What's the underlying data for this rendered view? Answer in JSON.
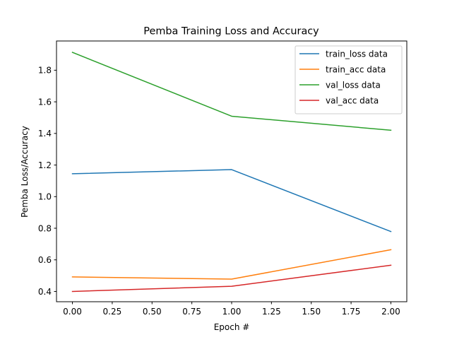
{
  "chart_data": {
    "type": "line",
    "title": "Pemba Training Loss and Accuracy",
    "xlabel": "Epoch #",
    "ylabel": "Pemba Loss/Accuracy",
    "x": [
      0,
      1,
      2
    ],
    "xlim": [
      -0.1,
      2.1
    ],
    "ylim": [
      0.335,
      1.985
    ],
    "xticks": [
      0.0,
      0.25,
      0.5,
      0.75,
      1.0,
      1.25,
      1.5,
      1.75,
      2.0
    ],
    "xtick_labels": [
      "0.00",
      "0.25",
      "0.50",
      "0.75",
      "1.00",
      "1.25",
      "1.50",
      "1.75",
      "2.00"
    ],
    "yticks": [
      0.4,
      0.6,
      0.8,
      1.0,
      1.2,
      1.4,
      1.6,
      1.8
    ],
    "ytick_labels": [
      "0.4",
      "0.6",
      "0.8",
      "1.0",
      "1.2",
      "1.4",
      "1.6",
      "1.8"
    ],
    "grid": false,
    "legend_position": "top-right",
    "series": [
      {
        "name": "train_loss data",
        "color": "#1f77b4",
        "values": [
          1.145,
          1.171,
          0.779
        ]
      },
      {
        "name": "train_acc data",
        "color": "#ff7f0e",
        "values": [
          0.492,
          0.478,
          0.664
        ]
      },
      {
        "name": "val_loss data",
        "color": "#2ca02c",
        "values": [
          1.913,
          1.509,
          1.42
        ]
      },
      {
        "name": "val_acc data",
        "color": "#d62728",
        "values": [
          0.4,
          0.433,
          0.566
        ]
      }
    ]
  }
}
